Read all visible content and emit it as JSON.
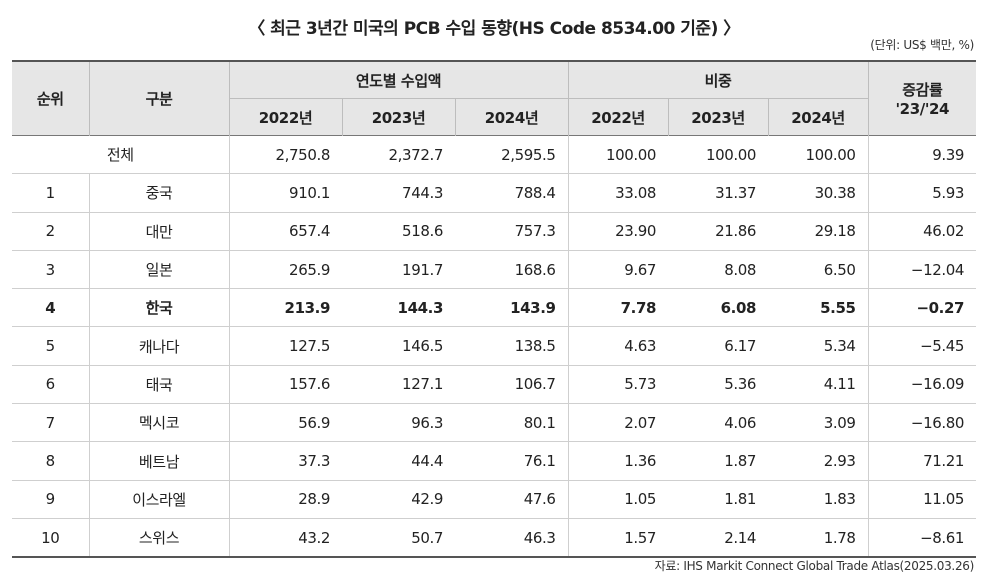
{
  "title": "〈 최근 3년간 미국의 PCB 수입 동향(HS Code 8534.00 기준) 〉",
  "unit": "(단위: US$ 백만, %)",
  "headers": {
    "rank": "순위",
    "category": "구분",
    "import_amount": "연도별 수입액",
    "share": "비중",
    "change": "증감률",
    "change_sub": "'23/'24",
    "years": [
      "2022년",
      "2023년",
      "2024년"
    ]
  },
  "total": {
    "label": "전체",
    "values": [
      "2,750.8",
      "2,372.7",
      "2,595.5",
      "100.00",
      "100.00",
      "100.00",
      "9.39"
    ]
  },
  "rows": [
    {
      "rank": "1",
      "country": "중국",
      "values": [
        "910.1",
        "744.3",
        "788.4",
        "33.08",
        "31.37",
        "30.38",
        "5.93"
      ]
    },
    {
      "rank": "2",
      "country": "대만",
      "values": [
        "657.4",
        "518.6",
        "757.3",
        "23.90",
        "21.86",
        "29.18",
        "46.02"
      ]
    },
    {
      "rank": "3",
      "country": "일본",
      "values": [
        "265.9",
        "191.7",
        "168.6",
        "9.67",
        "8.08",
        "6.50",
        "−12.04"
      ]
    },
    {
      "rank": "4",
      "country": "한국",
      "values": [
        "213.9",
        "144.3",
        "143.9",
        "7.78",
        "6.08",
        "5.55",
        "−0.27"
      ]
    },
    {
      "rank": "5",
      "country": "캐나다",
      "values": [
        "127.5",
        "146.5",
        "138.5",
        "4.63",
        "6.17",
        "5.34",
        "−5.45"
      ]
    },
    {
      "rank": "6",
      "country": "태국",
      "values": [
        "157.6",
        "127.1",
        "106.7",
        "5.73",
        "5.36",
        "4.11",
        "−16.09"
      ]
    },
    {
      "rank": "7",
      "country": "멕시코",
      "values": [
        "56.9",
        "96.3",
        "80.1",
        "2.07",
        "4.06",
        "3.09",
        "−16.80"
      ]
    },
    {
      "rank": "8",
      "country": "베트남",
      "values": [
        "37.3",
        "44.4",
        "76.1",
        "1.36",
        "1.87",
        "2.93",
        "71.21"
      ]
    },
    {
      "rank": "9",
      "country": "이스라엘",
      "values": [
        "28.9",
        "42.9",
        "47.6",
        "1.05",
        "1.81",
        "1.83",
        "11.05"
      ]
    },
    {
      "rank": "10",
      "country": "스위스",
      "values": [
        "43.2",
        "50.7",
        "46.3",
        "1.57",
        "2.14",
        "1.78",
        "−8.61"
      ]
    }
  ],
  "source": "자료: IHS Markit Connect Global Trade Atlas(2025.03.26)",
  "colors": {
    "header_bg": "#e6e6e6",
    "rule": "#555555"
  }
}
